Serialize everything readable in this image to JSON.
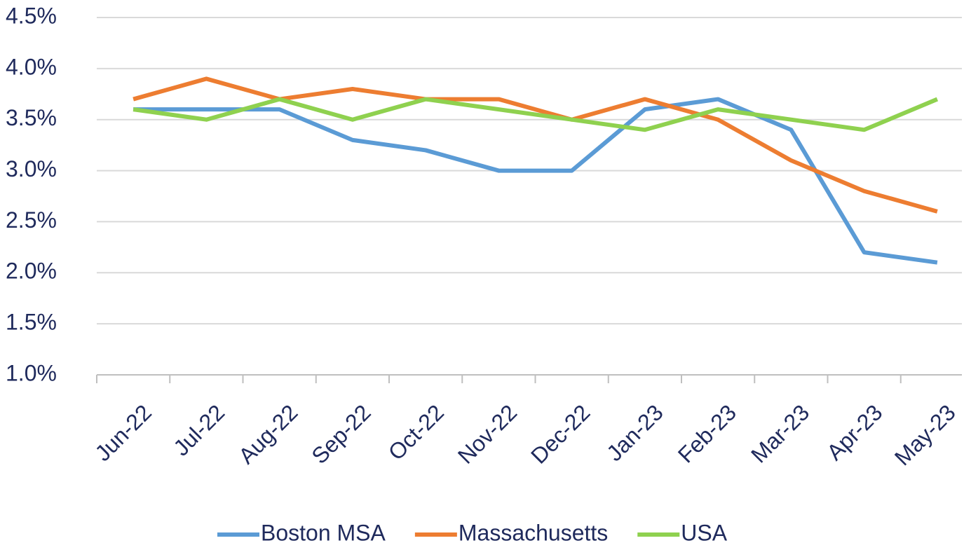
{
  "chart_data": {
    "type": "line",
    "categories": [
      "Jun-22",
      "Jul-22",
      "Aug-22",
      "Sep-22",
      "Oct-22",
      "Nov-22",
      "Dec-22",
      "Jan-23",
      "Feb-23",
      "Mar-23",
      "Apr-23",
      "May-23"
    ],
    "series": [
      {
        "name": "Boston MSA",
        "color": "#5b9bd5",
        "values": [
          3.6,
          3.6,
          3.6,
          3.3,
          3.2,
          3.0,
          3.0,
          3.6,
          3.7,
          3.4,
          2.2,
          2.1
        ]
      },
      {
        "name": "Massachusetts",
        "color": "#ed7d31",
        "values": [
          3.7,
          3.9,
          3.7,
          3.8,
          3.7,
          3.7,
          3.5,
          3.7,
          3.5,
          3.1,
          2.8,
          2.6
        ]
      },
      {
        "name": "USA",
        "color": "#8fd14f",
        "values": [
          3.6,
          3.5,
          3.7,
          3.5,
          3.7,
          3.6,
          3.5,
          3.4,
          3.6,
          3.5,
          3.4,
          3.7
        ]
      }
    ],
    "ylim": [
      1.0,
      4.5
    ],
    "yticks": [
      {
        "value": 1.0,
        "label": "1.0%"
      },
      {
        "value": 1.5,
        "label": "1.5%"
      },
      {
        "value": 2.0,
        "label": "2.0%"
      },
      {
        "value": 2.5,
        "label": "2.5%"
      },
      {
        "value": 3.0,
        "label": "3.0%"
      },
      {
        "value": 3.5,
        "label": "3.5%"
      },
      {
        "value": 4.0,
        "label": "4.0%"
      },
      {
        "value": 4.5,
        "label": "4.5%"
      }
    ],
    "grid": true,
    "legend": "bottom"
  }
}
